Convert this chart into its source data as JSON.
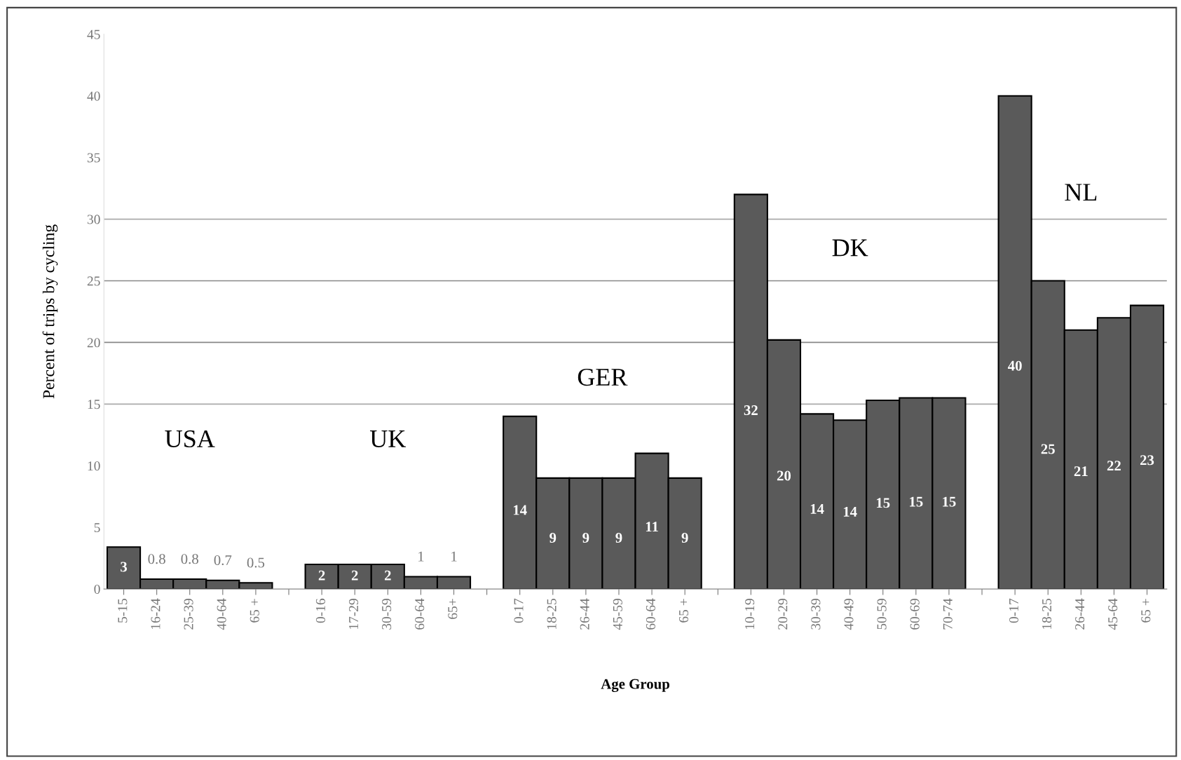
{
  "chart_data": {
    "type": "bar",
    "xlabel": "Age Group",
    "ylabel": "Percent of trips by cycling",
    "categories": [
      "5-15",
      "16-24",
      "25-39",
      "40-64",
      "65 +",
      null,
      "0-16",
      "17-29",
      "30-59",
      "60-64",
      "65+",
      null,
      "0-17",
      "18-25",
      "26-44",
      "45-59",
      "60-64",
      "65 +",
      null,
      "10-19",
      "20-29",
      "30-39",
      "40-49",
      "50-59",
      "60-69",
      "70-74",
      null,
      "0-17",
      "18-25",
      "26-44",
      "45-64",
      "65 +"
    ],
    "values": [
      3.4,
      0.8,
      0.8,
      0.7,
      0.5,
      null,
      2,
      2,
      2,
      1,
      1,
      null,
      14,
      9,
      9,
      9,
      11,
      9,
      null,
      32,
      20.2,
      14.2,
      13.7,
      15.3,
      15.5,
      15.5,
      null,
      40,
      25,
      21,
      22,
      23
    ],
    "value_labels": [
      "3",
      "0.8",
      "0.8",
      "0.7",
      "0.5",
      null,
      "2",
      "2",
      "2",
      "1",
      "1",
      null,
      "14",
      "9",
      "9",
      "9",
      "11",
      "9",
      null,
      "32",
      "20",
      "14",
      "14",
      "15",
      "15",
      "15",
      null,
      "40",
      "25",
      "21",
      "22",
      "23"
    ],
    "color": "#5a5a5a",
    "ylim": [
      0,
      45
    ],
    "yticks": [
      0,
      5,
      10,
      15,
      20,
      25,
      30,
      35,
      40,
      45
    ],
    "ref_lines": [
      {
        "axis": "y",
        "value": 15,
        "color": "#aaaaaa"
      },
      {
        "axis": "y",
        "value": 20,
        "color": "#888888"
      },
      {
        "axis": "y",
        "value": 25,
        "color": "#888888"
      },
      {
        "axis": "y",
        "value": 30,
        "color": "#aaaaaa"
      }
    ],
    "annotations": [
      "USA",
      "UK",
      "GER",
      "DK",
      "NL"
    ]
  }
}
